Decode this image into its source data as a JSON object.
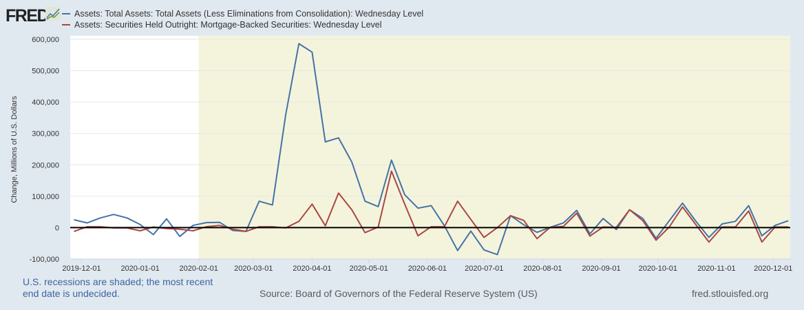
{
  "header": {
    "logo": "FRED",
    "logo_icon": "chart-line-icon"
  },
  "footer": {
    "recession_note": "U.S. recessions are shaded; the most recent end date is undecided.",
    "source": "Source: Board of Governors of the Federal Reserve System (US)",
    "site": "fred.stlouisfed.org"
  },
  "chart_data": {
    "type": "line",
    "title": "",
    "ylabel": "Change, Millions of U.S. Dollars",
    "xlabel": "",
    "ylim": [
      -100000,
      600000
    ],
    "xlim": [
      "2019-11-25",
      "2020-12-10"
    ],
    "grid": true,
    "legend_placement": "top-left",
    "recession_shading": {
      "start": "2020-02-01",
      "end": "2020-12-10",
      "color": "#f4f4dc"
    },
    "zero_line": true,
    "yticks": [
      -100000,
      0,
      100000,
      200000,
      300000,
      400000,
      500000,
      600000
    ],
    "ytick_labels": [
      "-100,000",
      "0",
      "100,000",
      "200,000",
      "300,000",
      "400,000",
      "500,000",
      "600,000"
    ],
    "xticks": [
      "2019-12-01",
      "2020-01-01",
      "2020-02-01",
      "2020-03-01",
      "2020-04-01",
      "2020-05-01",
      "2020-06-01",
      "2020-07-01",
      "2020-08-01",
      "2020-09-01",
      "2020-10-01",
      "2020-11-01",
      "2020-12-01"
    ],
    "x": [
      "2019-11-27",
      "2019-12-04",
      "2019-12-11",
      "2019-12-18",
      "2019-12-25",
      "2020-01-01",
      "2020-01-08",
      "2020-01-15",
      "2020-01-22",
      "2020-01-29",
      "2020-02-05",
      "2020-02-12",
      "2020-02-19",
      "2020-02-26",
      "2020-03-04",
      "2020-03-11",
      "2020-03-18",
      "2020-03-25",
      "2020-04-01",
      "2020-04-08",
      "2020-04-15",
      "2020-04-22",
      "2020-04-29",
      "2020-05-06",
      "2020-05-13",
      "2020-05-20",
      "2020-05-27",
      "2020-06-03",
      "2020-06-10",
      "2020-06-17",
      "2020-06-24",
      "2020-07-01",
      "2020-07-08",
      "2020-07-15",
      "2020-07-22",
      "2020-07-29",
      "2020-08-05",
      "2020-08-12",
      "2020-08-19",
      "2020-08-26",
      "2020-09-02",
      "2020-09-09",
      "2020-09-16",
      "2020-09-23",
      "2020-09-30",
      "2020-10-07",
      "2020-10-14",
      "2020-10-21",
      "2020-10-28",
      "2020-11-04",
      "2020-11-11",
      "2020-11-18",
      "2020-11-25",
      "2020-12-02",
      "2020-12-09"
    ],
    "series": [
      {
        "name": "Assets: Total Assets: Total Assets (Less Eliminations from Consolidation): Wednesday Level",
        "color": "#4572a7",
        "values": [
          25000,
          15000,
          31000,
          42000,
          31000,
          10000,
          -22000,
          28000,
          -28000,
          7000,
          16000,
          17000,
          -9000,
          -12000,
          84000,
          72000,
          359000,
          586000,
          559000,
          273000,
          286000,
          209000,
          84000,
          67000,
          215000,
          105000,
          62000,
          70000,
          6000,
          -73000,
          -11000,
          -71000,
          -86000,
          38000,
          9000,
          -15000,
          1000,
          15000,
          55000,
          -20000,
          29000,
          -6000,
          57000,
          29000,
          -34000,
          22000,
          78000,
          21000,
          -31000,
          12000,
          20000,
          70000,
          -26000,
          7000,
          22000
        ]
      },
      {
        "name": "Assets: Securities Held Outright: Mortgage-Backed Securities: Wednesday Level",
        "color": "#aa4643",
        "values": [
          -12000,
          3000,
          3000,
          -1000,
          -1000,
          -10000,
          2000,
          -3000,
          -5000,
          -10000,
          3000,
          7000,
          -5000,
          -12000,
          3000,
          3000,
          -1000,
          20000,
          75000,
          6000,
          110000,
          57000,
          -16000,
          2000,
          180000,
          75000,
          -26000,
          3000,
          3000,
          84000,
          26000,
          -31000,
          0,
          38000,
          23000,
          -35000,
          1000,
          4000,
          46000,
          -27000,
          2000,
          1000,
          57000,
          22000,
          -40000,
          2000,
          66000,
          10000,
          -46000,
          2000,
          2000,
          53000,
          -46000,
          2000,
          2000
        ]
      }
    ]
  }
}
